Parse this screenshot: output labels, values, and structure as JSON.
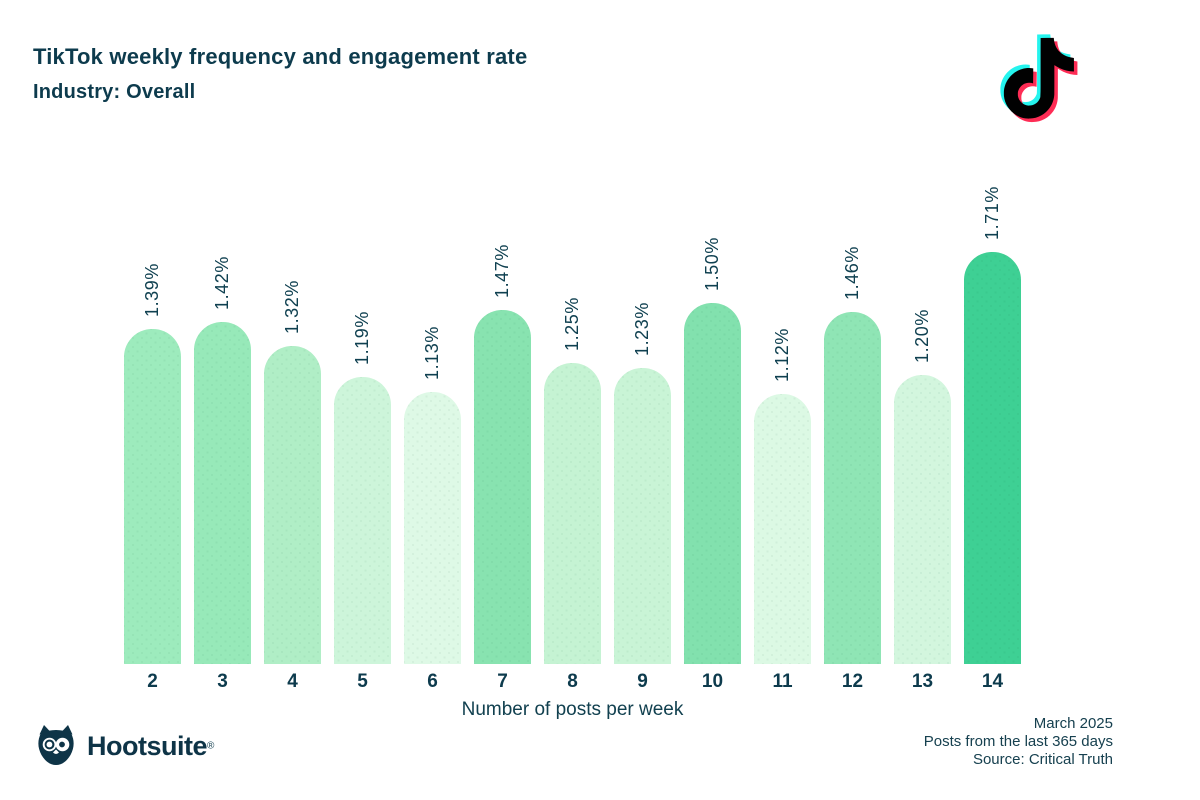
{
  "header": {
    "title": "TikTok weekly frequency and engagement rate",
    "subtitle": "Industry: Overall"
  },
  "icons": {
    "tiktok": "tiktok-note-icon",
    "hootsuite": "hootsuite-owl-icon"
  },
  "colors": {
    "text": "#0d3b4d",
    "background": "#ffffff",
    "tiktok_cyan": "#25f4ee",
    "tiktok_pink": "#fe2c55",
    "tiktok_black": "#010101",
    "owl_navy": "#0e3447"
  },
  "chart_data": {
    "type": "bar",
    "title": "TikTok weekly frequency and engagement rate",
    "subtitle": "Industry: Overall",
    "categories": [
      "2",
      "3",
      "4",
      "5",
      "6",
      "7",
      "8",
      "9",
      "10",
      "11",
      "12",
      "13",
      "14"
    ],
    "values": [
      1.39,
      1.42,
      1.32,
      1.19,
      1.13,
      1.47,
      1.25,
      1.23,
      1.5,
      1.12,
      1.46,
      1.2,
      1.71
    ],
    "labels": [
      "1.39%",
      "1.42%",
      "1.32%",
      "1.19%",
      "1.13%",
      "1.47%",
      "1.25%",
      "1.23%",
      "1.50%",
      "1.12%",
      "1.46%",
      "1.20%",
      "1.71%"
    ],
    "bar_colors": [
      "#9debbd",
      "#97e9b9",
      "#b0eec6",
      "#cdf5da",
      "#def9e6",
      "#88e3b0",
      "#c5f3d3",
      "#c9f4d6",
      "#82e1ae",
      "#dcf9e4",
      "#8fe5b5",
      "#d3f6de",
      "#3ed094"
    ],
    "xlabel": "Number of posts per week",
    "ylabel": "",
    "ylim": [
      0,
      1.71
    ],
    "grid": false,
    "legend": false,
    "value_labels_rotated": true
  },
  "footer": {
    "brand": "Hootsuite",
    "reg_mark": "®",
    "date": "March 2025",
    "range": "Posts from the last 365 days",
    "source": "Source: Critical Truth"
  }
}
